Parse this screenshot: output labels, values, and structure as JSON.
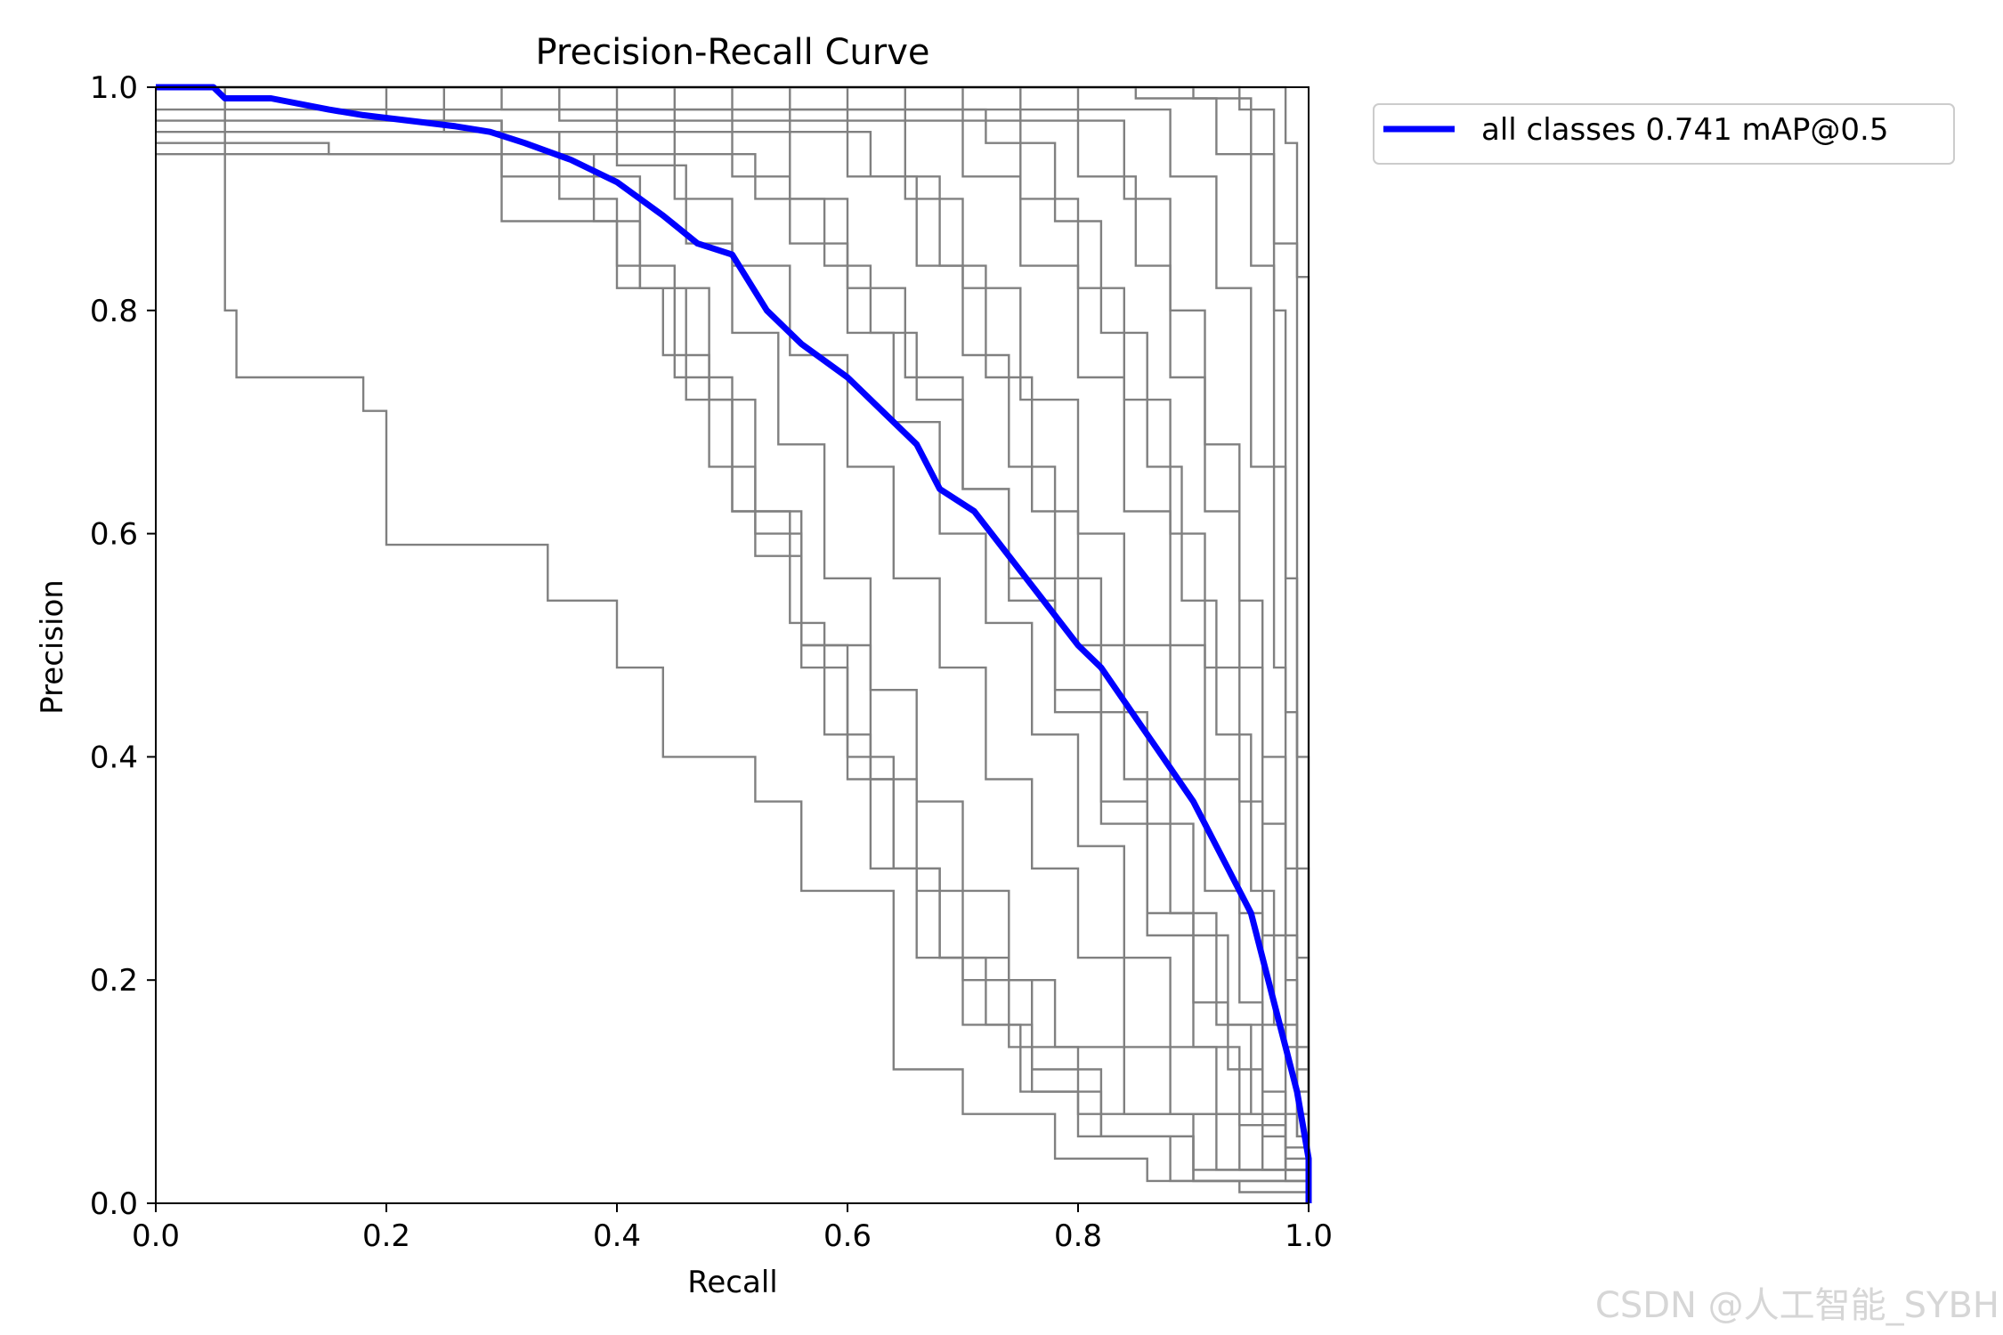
{
  "watermark": "CSDN @人工智能_SYBH",
  "chart_data": {
    "type": "line",
    "title": "Precision-Recall Curve",
    "xlabel": "Recall",
    "ylabel": "Precision",
    "xlim": [
      0,
      1
    ],
    "ylim": [
      0,
      1
    ],
    "xticks": [
      "0.0",
      "0.2",
      "0.4",
      "0.6",
      "0.8",
      "1.0"
    ],
    "yticks": [
      "0.0",
      "0.2",
      "0.4",
      "0.6",
      "0.8",
      "1.0"
    ],
    "grid": false,
    "legend": {
      "placement": "outside-top-right",
      "entries": [
        "all classes 0.741 mAP@0.5"
      ]
    },
    "colors": {
      "class_curves": "#808080",
      "all_classes": "#0000ff",
      "axes": "#000000"
    },
    "all_classes_curve": {
      "name": "all classes 0.741 mAP@0.5",
      "recall": [
        0.0,
        0.05,
        0.06,
        0.1,
        0.15,
        0.18,
        0.22,
        0.26,
        0.29,
        0.32,
        0.36,
        0.4,
        0.44,
        0.47,
        0.5,
        0.53,
        0.56,
        0.6,
        0.63,
        0.66,
        0.68,
        0.71,
        0.74,
        0.77,
        0.8,
        0.82,
        0.84,
        0.86,
        0.88,
        0.9,
        0.92,
        0.93,
        0.95,
        0.96,
        0.97,
        0.98,
        0.99,
        1.0,
        1.0
      ],
      "precision": [
        1.0,
        1.0,
        0.99,
        0.99,
        0.98,
        0.975,
        0.97,
        0.965,
        0.96,
        0.95,
        0.935,
        0.915,
        0.885,
        0.86,
        0.85,
        0.8,
        0.77,
        0.74,
        0.71,
        0.68,
        0.64,
        0.62,
        0.58,
        0.54,
        0.5,
        0.48,
        0.45,
        0.42,
        0.39,
        0.36,
        0.32,
        0.3,
        0.26,
        0.22,
        0.18,
        0.14,
        0.1,
        0.04,
        0.0
      ]
    },
    "class_curves": [
      {
        "recall": [
          0,
          0.06,
          0.07,
          0.18,
          0.2,
          0.34,
          0.4,
          0.44,
          0.52,
          0.56,
          0.64,
          0.7,
          0.78,
          0.86,
          0.94,
          1.0
        ],
        "precision": [
          1,
          0.8,
          0.74,
          0.71,
          0.59,
          0.54,
          0.48,
          0.4,
          0.36,
          0.28,
          0.12,
          0.08,
          0.04,
          0.02,
          0.01,
          0
        ]
      },
      {
        "recall": [
          0,
          0.2,
          0.3,
          0.38,
          0.42,
          0.46,
          0.5,
          0.56,
          0.62,
          0.66,
          0.7,
          0.76,
          0.82,
          0.9,
          1.0
        ],
        "precision": [
          1,
          0.97,
          0.94,
          0.88,
          0.82,
          0.72,
          0.62,
          0.5,
          0.38,
          0.28,
          0.2,
          0.12,
          0.06,
          0.02,
          0
        ]
      },
      {
        "recall": [
          0,
          0.25,
          0.35,
          0.4,
          0.45,
          0.5,
          0.55,
          0.58,
          0.62,
          0.66,
          0.7,
          0.75,
          0.8,
          0.88,
          1.0
        ],
        "precision": [
          1,
          0.96,
          0.9,
          0.84,
          0.74,
          0.62,
          0.52,
          0.42,
          0.3,
          0.22,
          0.16,
          0.1,
          0.06,
          0.02,
          0
        ]
      },
      {
        "recall": [
          0,
          0.15,
          0.3,
          0.4,
          0.44,
          0.48,
          0.52,
          0.56,
          0.6,
          0.64,
          0.68,
          0.74,
          0.8,
          0.9,
          1.0
        ],
        "precision": [
          0.95,
          0.94,
          0.88,
          0.82,
          0.76,
          0.66,
          0.58,
          0.5,
          0.4,
          0.3,
          0.22,
          0.14,
          0.08,
          0.03,
          0
        ]
      },
      {
        "recall": [
          0,
          0.3,
          0.4,
          0.46,
          0.5,
          0.54,
          0.58,
          0.62,
          0.66,
          0.7,
          0.74,
          0.78,
          0.84,
          0.92,
          1.0
        ],
        "precision": [
          1,
          0.98,
          0.93,
          0.86,
          0.78,
          0.68,
          0.56,
          0.46,
          0.36,
          0.28,
          0.2,
          0.14,
          0.08,
          0.03,
          0
        ]
      },
      {
        "recall": [
          0,
          0.35,
          0.45,
          0.5,
          0.55,
          0.6,
          0.64,
          0.68,
          0.72,
          0.76,
          0.8,
          0.84,
          0.88,
          0.94,
          1.0
        ],
        "precision": [
          1,
          0.97,
          0.9,
          0.84,
          0.76,
          0.66,
          0.56,
          0.48,
          0.38,
          0.3,
          0.22,
          0.14,
          0.08,
          0.03,
          0
        ]
      },
      {
        "recall": [
          0,
          0.4,
          0.5,
          0.55,
          0.6,
          0.64,
          0.68,
          0.72,
          0.76,
          0.8,
          0.84,
          0.88,
          0.92,
          0.96,
          1.0
        ],
        "precision": [
          1,
          0.98,
          0.92,
          0.86,
          0.78,
          0.7,
          0.6,
          0.52,
          0.42,
          0.32,
          0.22,
          0.14,
          0.08,
          0.03,
          0
        ]
      },
      {
        "recall": [
          0,
          0.45,
          0.55,
          0.6,
          0.65,
          0.7,
          0.74,
          0.78,
          0.82,
          0.86,
          0.9,
          0.93,
          0.96,
          0.98,
          1.0
        ],
        "precision": [
          1,
          0.97,
          0.9,
          0.82,
          0.74,
          0.64,
          0.56,
          0.46,
          0.36,
          0.26,
          0.18,
          0.12,
          0.06,
          0.03,
          0
        ]
      },
      {
        "recall": [
          0,
          0.5,
          0.6,
          0.66,
          0.7,
          0.74,
          0.78,
          0.82,
          0.86,
          0.9,
          0.93,
          0.96,
          0.98,
          1.0
        ],
        "precision": [
          1,
          0.98,
          0.92,
          0.84,
          0.76,
          0.66,
          0.56,
          0.44,
          0.34,
          0.24,
          0.16,
          0.08,
          0.04,
          0
        ]
      },
      {
        "recall": [
          0,
          0.55,
          0.65,
          0.7,
          0.75,
          0.8,
          0.84,
          0.88,
          0.91,
          0.94,
          0.96,
          0.98,
          1.0
        ],
        "precision": [
          1,
          0.97,
          0.9,
          0.82,
          0.72,
          0.6,
          0.5,
          0.38,
          0.28,
          0.18,
          0.1,
          0.05,
          0
        ]
      },
      {
        "recall": [
          0,
          0.6,
          0.7,
          0.75,
          0.8,
          0.84,
          0.88,
          0.91,
          0.94,
          0.96,
          0.98,
          1.0
        ],
        "precision": [
          1,
          0.98,
          0.92,
          0.84,
          0.74,
          0.62,
          0.5,
          0.38,
          0.26,
          0.16,
          0.08,
          0
        ]
      },
      {
        "recall": [
          0,
          0.65,
          0.75,
          0.8,
          0.84,
          0.88,
          0.91,
          0.94,
          0.96,
          0.98,
          0.99,
          1.0
        ],
        "precision": [
          1,
          0.97,
          0.9,
          0.82,
          0.72,
          0.6,
          0.48,
          0.36,
          0.24,
          0.14,
          0.06,
          0
        ]
      },
      {
        "recall": [
          0,
          0.7,
          0.8,
          0.85,
          0.88,
          0.91,
          0.94,
          0.96,
          0.98,
          0.99,
          1.0
        ],
        "precision": [
          1,
          0.98,
          0.92,
          0.84,
          0.74,
          0.62,
          0.48,
          0.34,
          0.2,
          0.1,
          0
        ]
      },
      {
        "recall": [
          0,
          0.75,
          0.84,
          0.88,
          0.91,
          0.94,
          0.96,
          0.98,
          0.99,
          1.0
        ],
        "precision": [
          1,
          0.97,
          0.9,
          0.8,
          0.68,
          0.54,
          0.4,
          0.24,
          0.12,
          0
        ]
      },
      {
        "recall": [
          0,
          0.8,
          0.88,
          0.92,
          0.95,
          0.97,
          0.98,
          0.99,
          1.0
        ],
        "precision": [
          1,
          0.98,
          0.92,
          0.82,
          0.66,
          0.48,
          0.3,
          0.14,
          0
        ]
      },
      {
        "recall": [
          0,
          0.85,
          0.92,
          0.95,
          0.97,
          0.98,
          0.99,
          1.0
        ],
        "precision": [
          1,
          0.99,
          0.94,
          0.84,
          0.66,
          0.44,
          0.22,
          0
        ]
      },
      {
        "recall": [
          0,
          0.9,
          0.95,
          0.97,
          0.98,
          0.99,
          1.0
        ],
        "precision": [
          1,
          0.99,
          0.94,
          0.8,
          0.56,
          0.3,
          0
        ]
      },
      {
        "recall": [
          0,
          0.94,
          0.97,
          0.99,
          1.0
        ],
        "precision": [
          1,
          0.98,
          0.86,
          0.4,
          0
        ]
      },
      {
        "recall": [
          0,
          0.98,
          0.99,
          1.0,
          1.0
        ],
        "precision": [
          1,
          0.95,
          0.83,
          0.83,
          0
        ]
      },
      {
        "recall": [
          0,
          0.52,
          0.58,
          0.62,
          0.66,
          0.7,
          0.74,
          0.78,
          0.82,
          0.86,
          0.9,
          0.94,
          0.98,
          1.0
        ],
        "precision": [
          0.94,
          0.9,
          0.84,
          0.78,
          0.72,
          0.64,
          0.54,
          0.44,
          0.34,
          0.24,
          0.14,
          0.07,
          0.02,
          0
        ]
      },
      {
        "recall": [
          0,
          0.3,
          0.42,
          0.48,
          0.52,
          0.56,
          0.6,
          0.64,
          0.68,
          0.72,
          0.76,
          0.82,
          0.9,
          1.0
        ],
        "precision": [
          0.97,
          0.92,
          0.82,
          0.72,
          0.6,
          0.48,
          0.38,
          0.3,
          0.22,
          0.16,
          0.1,
          0.06,
          0.02,
          0
        ]
      },
      {
        "recall": [
          0,
          0.62,
          0.68,
          0.72,
          0.76,
          0.8,
          0.84,
          0.88,
          0.92,
          0.95,
          0.98,
          1.0
        ],
        "precision": [
          0.96,
          0.92,
          0.84,
          0.74,
          0.62,
          0.5,
          0.38,
          0.26,
          0.16,
          0.08,
          0.03,
          0
        ]
      },
      {
        "recall": [
          0,
          0.72,
          0.78,
          0.82,
          0.86,
          0.89,
          0.92,
          0.95,
          0.97,
          0.99,
          1.0
        ],
        "precision": [
          0.98,
          0.95,
          0.88,
          0.78,
          0.66,
          0.54,
          0.42,
          0.28,
          0.16,
          0.06,
          0
        ]
      }
    ]
  }
}
